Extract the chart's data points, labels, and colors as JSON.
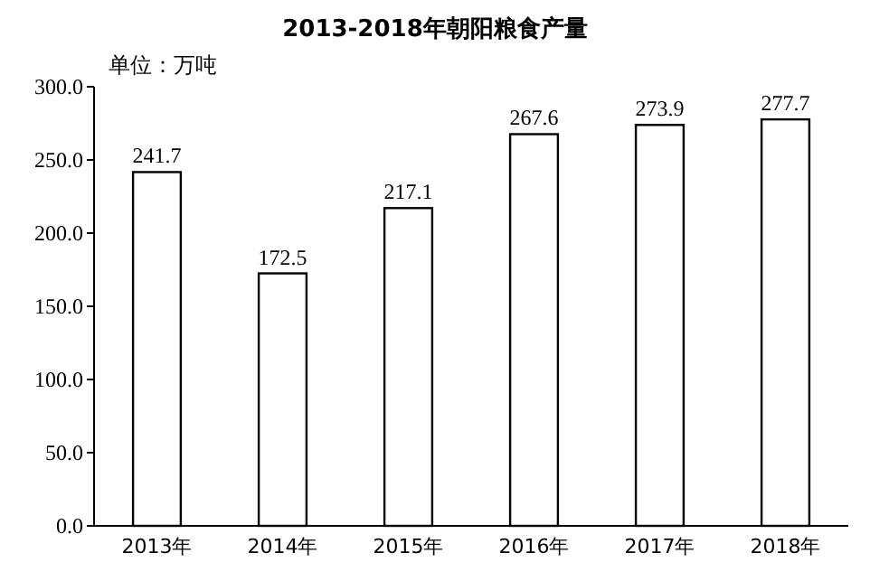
{
  "chart_data": {
    "type": "bar",
    "title": "2013-2018年朝阳粮食产量",
    "annotations": [
      "单位：万吨"
    ],
    "categories": [
      "2013年",
      "2014年",
      "2015年",
      "2016年",
      "2017年",
      "2018年"
    ],
    "values": [
      241.7,
      172.5,
      217.1,
      267.6,
      273.9,
      277.7
    ],
    "color": "#ffffff",
    "data_labels": true,
    "grid": false,
    "ylim": [
      0,
      300
    ],
    "yticks": [
      {
        "value": 0,
        "label": "0.0"
      },
      {
        "value": 50,
        "label": "50.0"
      },
      {
        "value": 100,
        "label": "100.0"
      },
      {
        "value": 150,
        "label": "150.0"
      },
      {
        "value": 200,
        "label": "200.0"
      },
      {
        "value": 250,
        "label": "250.0"
      },
      {
        "value": 300,
        "label": "300.0"
      }
    ]
  }
}
